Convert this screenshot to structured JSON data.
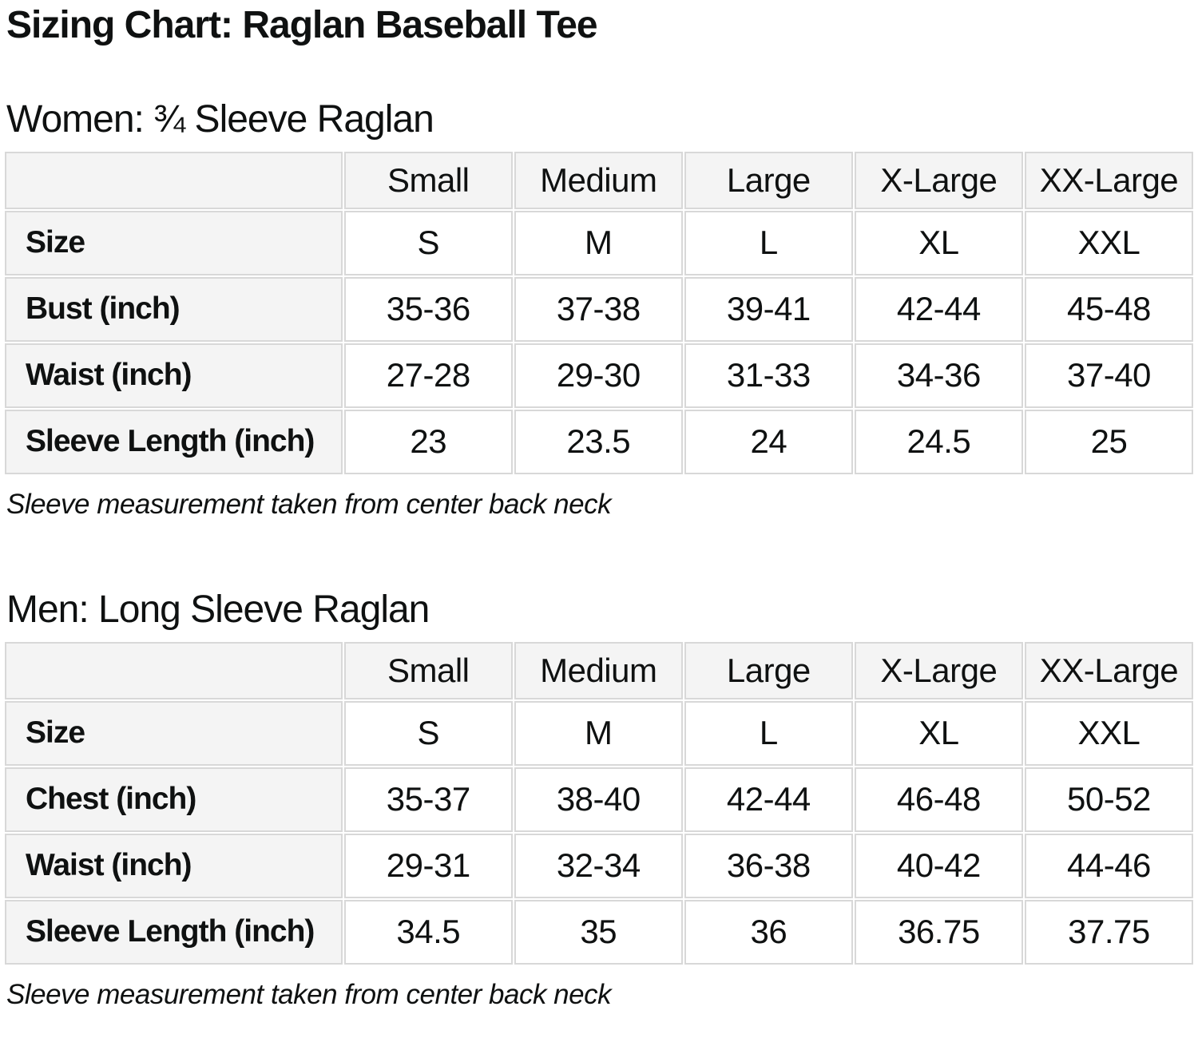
{
  "page": {
    "title": "Sizing Chart: Raglan Baseball Tee"
  },
  "colors": {
    "text": "#0f1111",
    "cell_background": "#f4f4f4",
    "border": "#d8d8d8",
    "paper": "#ffffff"
  },
  "sections": [
    {
      "heading": "Women: ¾ Sleeve Raglan",
      "note": "Sleeve measurement taken from center back neck",
      "table": {
        "columns": [
          "",
          "Small",
          "Medium",
          "Large",
          "X-Large",
          "XX-Large"
        ],
        "rows": [
          {
            "label": "Size",
            "values": [
              "S",
              "M",
              "L",
              "XL",
              "XXL"
            ]
          },
          {
            "label": "Bust (inch)",
            "values": [
              "35-36",
              "37-38",
              "39-41",
              "42-44",
              "45-48"
            ]
          },
          {
            "label": "Waist (inch)",
            "values": [
              "27-28",
              "29-30",
              "31-33",
              "34-36",
              "37-40"
            ]
          },
          {
            "label": "Sleeve Length (inch)",
            "values": [
              "23",
              "23.5",
              "24",
              "24.5",
              "25"
            ]
          }
        ]
      }
    },
    {
      "heading": "Men: Long Sleeve Raglan",
      "note": "Sleeve measurement taken from center back neck",
      "table": {
        "columns": [
          "",
          "Small",
          "Medium",
          "Large",
          "X-Large",
          "XX-Large"
        ],
        "rows": [
          {
            "label": "Size",
            "values": [
              "S",
              "M",
              "L",
              "XL",
              "XXL"
            ]
          },
          {
            "label": "Chest (inch)",
            "values": [
              "35-37",
              "38-40",
              "42-44",
              "46-48",
              "50-52"
            ]
          },
          {
            "label": "Waist (inch)",
            "values": [
              "29-31",
              "32-34",
              "36-38",
              "40-42",
              "44-46"
            ]
          },
          {
            "label": "Sleeve Length (inch)",
            "values": [
              "34.5",
              "35",
              "36",
              "36.75",
              "37.75"
            ]
          }
        ]
      }
    }
  ]
}
